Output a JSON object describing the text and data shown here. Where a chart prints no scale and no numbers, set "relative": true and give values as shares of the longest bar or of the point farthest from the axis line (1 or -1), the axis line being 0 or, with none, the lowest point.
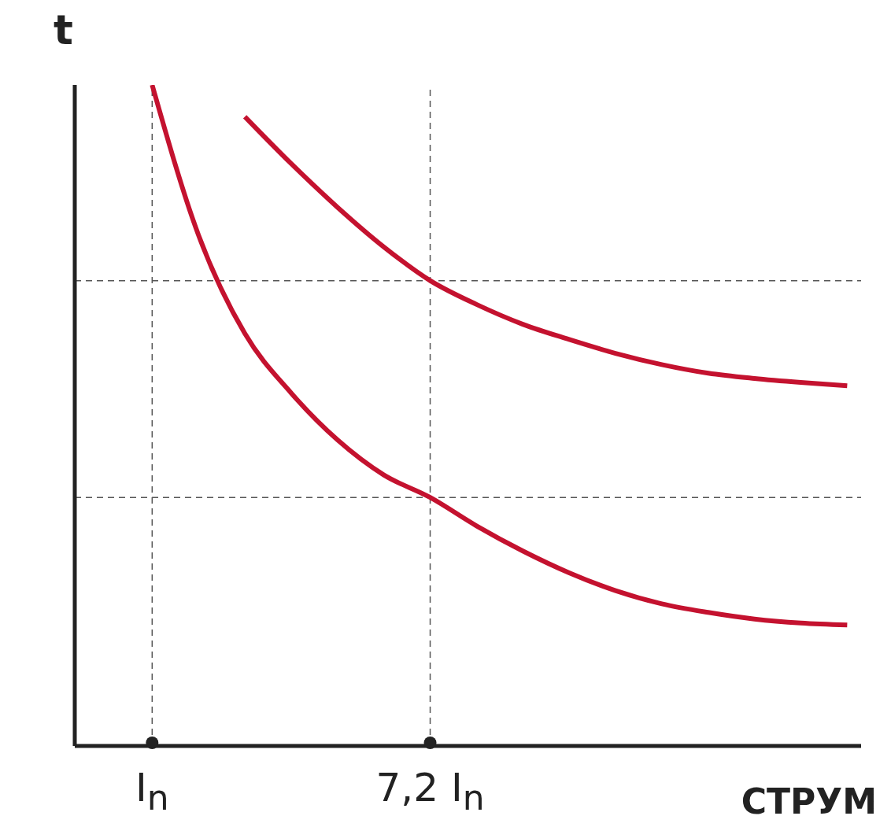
{
  "chart_data": {
    "type": "line",
    "relative": true,
    "ylabel": "t",
    "xlabel": "СТРУМ",
    "categories": [
      "I$_{n}$",
      null,
      null,
      null,
      null,
      null,
      "7,2 I$_{n}$",
      null,
      null,
      null,
      null,
      null,
      null,
      null,
      null,
      null
    ],
    "grid": false,
    "legend": false,
    "marker": "none",
    "line_style": "solid",
    "series": [
      {
        "color": "#c4122f",
        "values": [
          null,
          null,
          0.952,
          0.881,
          0.815,
          0.755,
          0.704,
          0.668,
          0.638,
          0.615,
          0.594,
          0.577,
          0.564,
          0.556,
          0.55,
          0.545
        ]
      },
      {
        "color": "#c4122f",
        "values": [
          1.0,
          0.773,
          0.624,
          0.534,
          0.463,
          0.41,
          0.376,
          0.333,
          0.295,
          0.262,
          0.235,
          0.215,
          0.202,
          0.192,
          0.186,
          0.183
        ]
      }
    ],
    "ref_lines": [
      {
        "axis": "x",
        "value": "I$_{n}$",
        "color": "#555555",
        "line_style": "dashed"
      },
      {
        "axis": "x",
        "value": "7,2 I$_{n}$",
        "color": "#555555",
        "line_style": "dashed"
      },
      {
        "axis": "y",
        "value": 0.704,
        "color": "#555555",
        "line_style": "dashed"
      },
      {
        "axis": "y",
        "value": 0.376,
        "color": "#555555",
        "line_style": "dashed"
      }
    ]
  }
}
